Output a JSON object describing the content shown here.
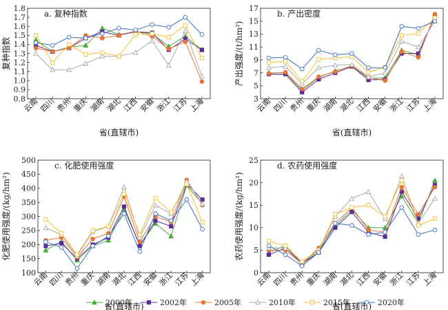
{
  "chart_data": [
    {
      "type": "line",
      "title": "a. 复种指数",
      "xlabel": "省(直辖市)",
      "ylabel": "复种指数",
      "ylim": [
        0.8,
        1.8
      ],
      "yticks": [
        "0.8",
        "0.9",
        "1.0",
        "1.1",
        "1.2",
        "1.3",
        "1.4",
        "1.5",
        "1.6",
        "1.7",
        "1.8"
      ],
      "categories": [
        "云南",
        "四川",
        "贵州",
        "重庆",
        "湖南",
        "湖北",
        "江西",
        "安徽",
        "浙江",
        "江苏",
        "上海"
      ],
      "series": [
        {
          "name": "2000年",
          "values": [
            1.45,
            1.32,
            1.37,
            1.39,
            1.58,
            1.51,
            1.54,
            1.52,
            1.38,
            1.49,
            1.34
          ]
        },
        {
          "name": "2002年",
          "values": [
            1.39,
            1.32,
            1.36,
            1.47,
            1.54,
            1.5,
            1.54,
            1.53,
            1.34,
            1.46,
            1.34
          ]
        },
        {
          "name": "2005年",
          "values": [
            1.36,
            1.32,
            1.36,
            1.5,
            1.47,
            1.5,
            1.55,
            1.49,
            1.35,
            1.43,
            0.99
          ]
        },
        {
          "name": "2010年",
          "values": [
            1.3,
            1.12,
            1.12,
            1.19,
            1.27,
            1.27,
            1.31,
            1.44,
            1.17,
            1.55,
            1.05
          ]
        },
        {
          "name": "2015年",
          "values": [
            1.5,
            1.2,
            1.4,
            1.29,
            1.31,
            1.27,
            1.51,
            1.52,
            1.48,
            1.61,
            1.25
          ]
        },
        {
          "name": "2020年",
          "values": [
            1.42,
            1.39,
            1.48,
            1.47,
            1.52,
            1.58,
            1.56,
            1.62,
            1.59,
            1.7,
            1.51
          ]
        }
      ]
    },
    {
      "type": "line",
      "title": "b. 产出密度",
      "xlabel": "省(直辖市)",
      "ylabel": "产出强度/(t/hm²)",
      "ylim": [
        3,
        17
      ],
      "yticks": [
        "3",
        "5",
        "7",
        "9",
        "11",
        "13",
        "15",
        "17"
      ],
      "categories": [
        "云南",
        "四川",
        "贵州",
        "重庆",
        "湖南",
        "湖北",
        "江西",
        "安徽",
        "浙江",
        "江苏",
        "上海"
      ],
      "series": [
        {
          "name": "2000年",
          "values": [
            7.0,
            7.0,
            4.3,
            6.3,
            7.3,
            8.0,
            6.2,
            6.2,
            10.5,
            9.8,
            15.8
          ]
        },
        {
          "name": "2002年",
          "values": [
            6.8,
            6.8,
            4.0,
            6.0,
            7.0,
            8.0,
            5.9,
            6.0,
            10.0,
            10.0,
            15.7
          ]
        },
        {
          "name": "2005年",
          "values": [
            6.9,
            7.1,
            4.5,
            6.4,
            7.2,
            8.1,
            6.3,
            5.8,
            10.3,
            9.4,
            16.1
          ]
        },
        {
          "name": "2010年",
          "values": [
            7.8,
            8.0,
            5.3,
            7.8,
            8.2,
            8.3,
            6.4,
            7.0,
            11.9,
            11.0,
            15.0
          ]
        },
        {
          "name": "2015年",
          "values": [
            8.6,
            8.8,
            5.7,
            9.1,
            9.3,
            9.5,
            7.1,
            7.9,
            12.8,
            13.1,
            15.5
          ]
        },
        {
          "name": "2020年",
          "values": [
            9.3,
            9.4,
            7.6,
            10.5,
            9.8,
            10.0,
            7.8,
            7.8,
            14.2,
            13.9,
            15.0
          ]
        }
      ]
    },
    {
      "type": "line",
      "title": "c. 化肥使用强度",
      "xlabel": "省(直辖市)",
      "ylabel": "化肥使用强度/(kg/hm²)",
      "ylim": [
        100,
        500
      ],
      "yticks": [
        "100",
        "150",
        "200",
        "250",
        "300",
        "350",
        "400",
        "450",
        "500"
      ],
      "categories": [
        "云南",
        "四川",
        "贵州",
        "重庆",
        "湖南",
        "湖北",
        "江西",
        "安徽",
        "浙江",
        "江苏",
        "上海"
      ],
      "series": [
        {
          "name": "2000年",
          "values": [
            180,
            210,
            145,
            195,
            215,
            325,
            200,
            275,
            230,
            410,
            345
          ]
        },
        {
          "name": "2002年",
          "values": [
            195,
            205,
            150,
            200,
            225,
            335,
            195,
            285,
            265,
            415,
            360
          ]
        },
        {
          "name": "2005年",
          "values": [
            215,
            225,
            155,
            220,
            240,
            370,
            210,
            300,
            280,
            430,
            340
          ]
        },
        {
          "name": "2010年",
          "values": [
            260,
            235,
            160,
            245,
            265,
            405,
            225,
            340,
            310,
            425,
            345
          ]
        },
        {
          "name": "2015年",
          "values": [
            290,
            240,
            165,
            250,
            265,
            380,
            235,
            365,
            315,
            415,
            280
          ]
        },
        {
          "name": "2020年",
          "values": [
            210,
            190,
            115,
            195,
            230,
            310,
            175,
            310,
            285,
            360,
            255
          ]
        }
      ]
    },
    {
      "type": "line",
      "title": "d. 农药使用强度",
      "xlabel": "省(直辖市)",
      "ylabel": "农药使用强度/(kg/hm²)",
      "ylim": [
        0,
        25
      ],
      "yticks": [
        "0",
        "5",
        "10",
        "15",
        "20",
        "25"
      ],
      "categories": [
        "云南",
        "四川",
        "贵州",
        "重庆",
        "湖南",
        "湖北",
        "江西",
        "安徽",
        "浙江",
        "江苏",
        "上海"
      ],
      "series": [
        {
          "name": "2000年",
          "values": [
            4.5,
            6.0,
            2.0,
            5.0,
            10.5,
            14.0,
            10.0,
            10.0,
            17.0,
            11.0,
            20.5
          ]
        },
        {
          "name": "2002年",
          "values": [
            4.0,
            5.5,
            2.0,
            4.5,
            10.0,
            13.5,
            9.0,
            8.0,
            18.0,
            12.0,
            19.5
          ]
        },
        {
          "name": "2005年",
          "values": [
            5.0,
            5.0,
            2.0,
            5.5,
            11.0,
            14.5,
            9.5,
            9.0,
            19.0,
            13.0,
            19.0
          ]
        },
        {
          "name": "2010年",
          "values": [
            5.5,
            5.5,
            2.5,
            5.0,
            12.5,
            16.5,
            18.0,
            12.0,
            21.5,
            11.0,
            16.5
          ]
        },
        {
          "name": "2015年",
          "values": [
            7.0,
            6.0,
            2.5,
            5.0,
            13.0,
            14.5,
            15.0,
            12.5,
            20.5,
            10.5,
            12.0
          ]
        },
        {
          "name": "2020年",
          "values": [
            6.0,
            4.0,
            1.5,
            4.5,
            11.0,
            10.5,
            8.5,
            9.0,
            14.5,
            8.5,
            9.5
          ]
        }
      ]
    }
  ],
  "legend": [
    {
      "name": "2000年",
      "color": "#4daa3c",
      "marker": "triangle"
    },
    {
      "name": "2002年",
      "color": "#5b2a9a",
      "marker": "square"
    },
    {
      "name": "2005年",
      "color": "#e8743a",
      "marker": "circle-filled"
    },
    {
      "name": "2010年",
      "color": "#a8a8a8",
      "marker": "triangle-open"
    },
    {
      "name": "2015年",
      "color": "#f5c02c",
      "marker": "square-open"
    },
    {
      "name": "2020年",
      "color": "#3a6fc4",
      "marker": "circle-open"
    }
  ]
}
